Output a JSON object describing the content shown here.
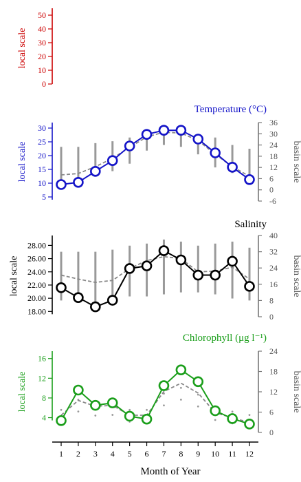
{
  "figure": {
    "xlabel": "Month of Year",
    "months": [
      "1",
      "2",
      "3",
      "4",
      "5",
      "6",
      "7",
      "8",
      "9",
      "10",
      "11",
      "12"
    ],
    "local_axis_label": "local scale",
    "basin_axis_label": "basin scale"
  },
  "chart_data": [
    {
      "id": "empty",
      "type": "line",
      "title": "",
      "color": "#cc0000",
      "local_ticks": [
        0,
        10,
        20,
        30,
        40,
        50
      ],
      "local_ylim": [
        -3,
        55
      ],
      "series": []
    },
    {
      "id": "temperature",
      "type": "line",
      "title": "Temperature (°C)",
      "color": "#1414c8",
      "local_ticks": [
        5,
        10,
        15,
        20,
        25,
        30
      ],
      "local_ylim": [
        3.5,
        32
      ],
      "basin_ticks": [
        -6,
        0,
        6,
        12,
        18,
        24,
        30,
        36
      ],
      "basin_ylim": [
        -6,
        36
      ],
      "x": [
        1,
        2,
        3,
        4,
        5,
        6,
        7,
        8,
        9,
        10,
        11,
        12
      ],
      "series": [
        {
          "role": "local",
          "values": [
            9.5,
            10.3,
            14.3,
            18.2,
            23.5,
            27.7,
            29.2,
            29.2,
            26.0,
            21.0,
            15.8,
            11.3
          ]
        },
        {
          "role": "basin",
          "values": [
            13.0,
            13.5,
            16.0,
            19.0,
            23.0,
            26.8,
            28.5,
            28.2,
            25.5,
            20.5,
            16.0,
            12.5
          ]
        }
      ],
      "basin_ranges": [
        [
          5,
          23
        ],
        [
          6,
          23
        ],
        [
          7,
          25
        ],
        [
          10,
          26
        ],
        [
          14,
          28
        ],
        [
          21,
          30
        ],
        [
          24,
          31
        ],
        [
          23,
          31
        ],
        [
          19,
          29
        ],
        [
          12,
          28
        ],
        [
          9,
          24
        ],
        [
          6,
          22
        ]
      ]
    },
    {
      "id": "salinity",
      "type": "line",
      "title": "Salinity",
      "color": "#000000",
      "local_ticks": [
        "18.00",
        "20.00",
        "22.00",
        "24.00",
        "26.00",
        "28.00"
      ],
      "local_ylim": [
        17.2,
        29.5
      ],
      "basin_ticks": [
        0,
        8,
        16,
        24,
        32,
        40
      ],
      "basin_ylim": [
        0,
        40
      ],
      "x": [
        1,
        2,
        3,
        4,
        5,
        6,
        7,
        8,
        9,
        10,
        11,
        12
      ],
      "series": [
        {
          "role": "local",
          "values": [
            21.6,
            20.1,
            18.7,
            19.7,
            24.5,
            24.9,
            27.2,
            25.8,
            23.5,
            23.5,
            25.6,
            21.8
          ]
        },
        {
          "role": "basin",
          "values": [
            23.5,
            22.9,
            22.4,
            22.7,
            24.5,
            25.7,
            26.3,
            26.0,
            24.0,
            24.1,
            24.7,
            22.9
          ]
        }
      ],
      "basin_ranges": [
        [
          8,
          32
        ],
        [
          7,
          32
        ],
        [
          6,
          32
        ],
        [
          8,
          33
        ],
        [
          10,
          35
        ],
        [
          10,
          36
        ],
        [
          11,
          38
        ],
        [
          12,
          37
        ],
        [
          12,
          35
        ],
        [
          11,
          36
        ],
        [
          9,
          37
        ],
        [
          8,
          34
        ]
      ]
    },
    {
      "id": "chlorophyll",
      "type": "line",
      "title": "Chlorophyll (μg l⁻¹)",
      "color": "#1a9e1a",
      "local_ticks": [
        4,
        8,
        12,
        16
      ],
      "local_ylim": [
        1,
        17.5
      ],
      "basin_ticks": [
        0,
        6,
        12,
        18,
        24
      ],
      "basin_ylim": [
        0,
        24
      ],
      "x": [
        1,
        2,
        3,
        4,
        5,
        6,
        7,
        8,
        9,
        10,
        11,
        12
      ],
      "series": [
        {
          "role": "local",
          "values": [
            3.4,
            9.6,
            6.5,
            7.0,
            4.3,
            3.7,
            10.5,
            13.7,
            11.3,
            5.4,
            3.8,
            2.7
          ]
        },
        {
          "role": "basin",
          "values": [
            4.5,
            7.5,
            6.3,
            6.5,
            4.5,
            4.5,
            9.3,
            11.0,
            9.0,
            5.0,
            4.0,
            3.0
          ]
        }
      ]
    }
  ]
}
